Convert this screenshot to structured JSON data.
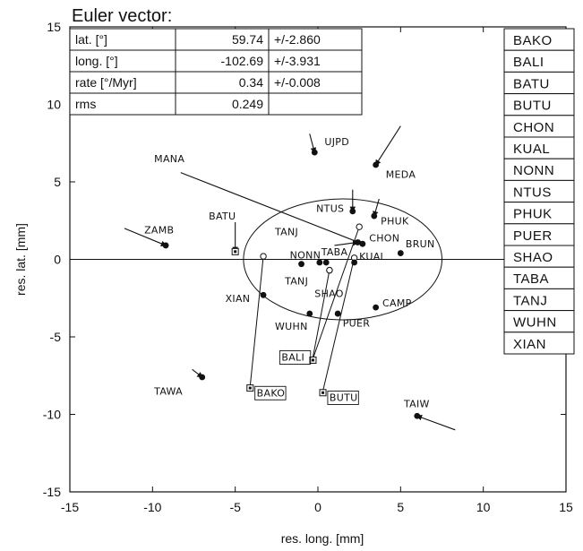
{
  "chart_data": {
    "type": "scatter",
    "xlabel": "res. long. [mm]",
    "ylabel": "res. lat. [mm]",
    "xlim": [
      -15,
      15
    ],
    "ylim": [
      -15,
      15
    ],
    "xticks": [
      "-15",
      "-10",
      "-5",
      "0",
      "5",
      "10",
      "15"
    ],
    "yticks": [
      "-15",
      "-10",
      "-5",
      "0",
      "5",
      "10",
      "15"
    ],
    "grid": false,
    "euler_vector": {
      "title": "Euler vector:",
      "rows": [
        {
          "label": "lat. [°]",
          "value": "59.74",
          "error": "+/-2.860"
        },
        {
          "label": "long. [°]",
          "value": "-102.69",
          "error": "+/-3.931"
        },
        {
          "label": "rate [°/Myr]",
          "value": "0.34",
          "error": "+/-0.008"
        },
        {
          "label": "rms",
          "value": "0.249",
          "error": ""
        }
      ]
    },
    "legend": [
      "BAKO",
      "BALI",
      "BATU",
      "BUTU",
      "CHON",
      "KUAL",
      "NONN",
      "NTUS",
      "PHUK",
      "PUER",
      "SHAO",
      "TABA",
      "TANJ",
      "WUHN",
      "XIAN"
    ],
    "ellipse": {
      "cx": 1.5,
      "cy": 0.0,
      "rx": 6.0,
      "ry": 3.9
    },
    "stations": [
      {
        "name": "UJPD",
        "x": -0.2,
        "y": 6.9,
        "vx": -0.3,
        "vy": 1.2,
        "label_dx": 0.6,
        "label_dy": 0.7,
        "style": "dot"
      },
      {
        "name": "MEDA",
        "x": 3.5,
        "y": 6.1,
        "vx": 1.5,
        "vy": 2.5,
        "label_dx": 0.6,
        "label_dy": -0.6,
        "style": "dot"
      },
      {
        "name": "MANA",
        "x": 2.7,
        "y": 1.0,
        "vx": -11.0,
        "vy": 4.6,
        "label_dx": -12.6,
        "label_dy": 5.5,
        "style": "dot"
      },
      {
        "name": "NTUS",
        "x": 2.1,
        "y": 3.1,
        "vx": 0.0,
        "vy": 1.4,
        "label_dx": -2.2,
        "label_dy": 0.2,
        "style": "dot"
      },
      {
        "name": "PHUK",
        "x": 3.4,
        "y": 2.8,
        "vx": 0.3,
        "vy": 1.1,
        "label_dx": 0.4,
        "label_dy": -0.3,
        "style": "dot"
      },
      {
        "name": "ZAMB",
        "x": -9.2,
        "y": 0.9,
        "vx": -2.5,
        "vy": 1.1,
        "label_dx": -1.3,
        "label_dy": 1.0,
        "style": "dot"
      },
      {
        "name": "BATU",
        "x": -5.0,
        "y": 0.5,
        "vx": 0.0,
        "vy": 1.9,
        "label_dx": -1.6,
        "label_dy": 2.3,
        "style": "square"
      },
      {
        "name": "TANJ",
        "x": 0.3,
        "y": 1.6,
        "vx": 0.0,
        "vy": 0.0,
        "label_dx": -2.9,
        "label_dy": 0.2,
        "style": "label"
      },
      {
        "name": "CHON",
        "x": 2.4,
        "y": 1.1,
        "vx": -1.4,
        "vy": -0.2,
        "label_dx": 0.7,
        "label_dy": 0.3,
        "style": "dot"
      },
      {
        "name": "BRUN",
        "x": 5.0,
        "y": 0.4,
        "vx": 0.0,
        "vy": 0.0,
        "label_dx": 0.3,
        "label_dy": 0.6,
        "style": "dot"
      },
      {
        "name": "NONN",
        "x": -1.0,
        "y": -0.3,
        "vx": 0.0,
        "vy": 0.0,
        "label_dx": -0.7,
        "label_dy": 0.6,
        "style": "dot"
      },
      {
        "name": "TABA",
        "x": 0.5,
        "y": -0.2,
        "vx": 0.0,
        "vy": 0.0,
        "label_dx": -0.3,
        "label_dy": 0.7,
        "style": "dot"
      },
      {
        "name": "KUAL",
        "x": 2.2,
        "y": -0.2,
        "vx": 0.0,
        "vy": 0.0,
        "label_dx": 0.3,
        "label_dy": 0.4,
        "style": "dot"
      },
      {
        "name": "TANJ",
        "x": 0.1,
        "y": -0.2,
        "vx": 0.0,
        "vy": 0.0,
        "label_dx": -2.1,
        "label_dy": -1.2,
        "style": "dot"
      },
      {
        "name": "SHAO",
        "x": 0.7,
        "y": -0.7,
        "vx": 0.0,
        "vy": 0.0,
        "label_dx": -0.9,
        "label_dy": -1.5,
        "style": "circle"
      },
      {
        "name": "XIAN",
        "x": -3.3,
        "y": -2.3,
        "vx": 0.0,
        "vy": 0.0,
        "label_dx": -2.3,
        "label_dy": -0.2,
        "style": "dot"
      },
      {
        "name": "CAMP",
        "x": 3.5,
        "y": -3.1,
        "vx": 0.0,
        "vy": 0.0,
        "label_dx": 0.4,
        "label_dy": 0.3,
        "style": "dot"
      },
      {
        "name": "WUHN",
        "x": -0.5,
        "y": -3.5,
        "vx": 0.0,
        "vy": 0.0,
        "label_dx": -2.1,
        "label_dy": -0.8,
        "style": "dot"
      },
      {
        "name": "PUER",
        "x": 1.2,
        "y": -3.5,
        "vx": 0.0,
        "vy": 0.0,
        "label_dx": 0.3,
        "label_dy": -0.6,
        "style": "dot"
      },
      {
        "name": "BALI",
        "x": -0.3,
        "y": -6.5,
        "vx": 0.0,
        "vy": 0.0,
        "label_dx": -1.9,
        "label_dy": 0.2,
        "style": "square"
      },
      {
        "name": "BAKO",
        "x": -4.1,
        "y": -8.3,
        "vx": 0.0,
        "vy": 0.0,
        "label_dx": 0.4,
        "label_dy": -0.3,
        "style": "square"
      },
      {
        "name": "TAWA",
        "x": -7.0,
        "y": -7.6,
        "vx": -0.6,
        "vy": 0.5,
        "label_dx": -2.9,
        "label_dy": -0.9,
        "style": "dot"
      },
      {
        "name": "BUTU",
        "x": 0.3,
        "y": -8.6,
        "vx": 0.0,
        "vy": 0.0,
        "label_dx": 0.4,
        "label_dy": -0.3,
        "style": "square"
      },
      {
        "name": "TAIW",
        "x": 6.0,
        "y": -10.1,
        "vx": 2.3,
        "vy": -0.9,
        "label_dx": -0.8,
        "label_dy": 0.8,
        "style": "dot"
      }
    ],
    "long_vectors": [
      {
        "from": [
          -3.3,
          0.2
        ],
        "to": [
          -4.1,
          -8.2
        ]
      },
      {
        "from": [
          2.5,
          2.1
        ],
        "to": [
          -0.3,
          -6.4
        ]
      },
      {
        "from": [
          2.2,
          0.1
        ],
        "to": [
          0.3,
          -8.5
        ]
      },
      {
        "from": [
          0.7,
          -0.7
        ],
        "to": [
          -0.3,
          -6.3
        ]
      }
    ],
    "open_circles": [
      [
        -3.3,
        0.2
      ],
      [
        2.5,
        2.1
      ],
      [
        0.7,
        -0.7
      ],
      [
        2.2,
        0.1
      ]
    ]
  }
}
